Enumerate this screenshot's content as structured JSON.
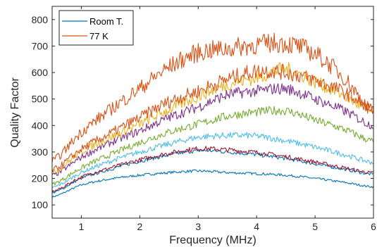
{
  "chart_data": {
    "type": "line",
    "xlabel": "Frequency (MHz)",
    "ylabel": "Quality Factor",
    "xlim": [
      0.5,
      6
    ],
    "ylim": [
      50,
      850
    ],
    "xticks": [
      1,
      2,
      3,
      4,
      5,
      6
    ],
    "yticks": [
      100,
      200,
      300,
      400,
      500,
      600,
      700,
      800
    ],
    "grid": false,
    "legend_position": "top-left",
    "legend": [
      {
        "label": "Room T.",
        "color": "#0072BD"
      },
      {
        "label": "77 K",
        "color": "#D95319"
      }
    ],
    "x": [
      0.5,
      1.0,
      1.5,
      2.0,
      2.5,
      3.0,
      3.5,
      4.0,
      4.5,
      5.0,
      5.5,
      6.0
    ],
    "series": [
      {
        "color": "#0072BD",
        "values": [
          130,
          175,
          198,
          212,
          222,
          228,
          222,
          218,
          212,
          200,
          185,
          168
        ]
      },
      {
        "color": "#0072BD",
        "values": [
          145,
          200,
          235,
          265,
          288,
          305,
          300,
          290,
          275,
          255,
          235,
          215
        ]
      },
      {
        "color": "#A2142F",
        "values": [
          150,
          205,
          240,
          270,
          295,
          312,
          308,
          298,
          282,
          262,
          240,
          220
        ]
      },
      {
        "color": "#4DBEEE",
        "values": [
          165,
          222,
          265,
          300,
          330,
          355,
          362,
          360,
          342,
          318,
          290,
          260
        ]
      },
      {
        "color": "#77AC30",
        "values": [
          178,
          240,
          290,
          335,
          375,
          405,
          435,
          450,
          455,
          420,
          385,
          340
        ]
      },
      {
        "color": "#7E2F8E",
        "values": [
          210,
          280,
          335,
          380,
          430,
          470,
          515,
          530,
          538,
          500,
          455,
          400
        ]
      },
      {
        "color": "#EDB120",
        "values": [
          222,
          300,
          355,
          405,
          460,
          510,
          555,
          580,
          612,
          565,
          512,
          450
        ]
      },
      {
        "color": "#D95319",
        "values": [
          230,
          310,
          370,
          430,
          490,
          530,
          575,
          605,
          600,
          570,
          525,
          460
        ]
      },
      {
        "color": "#D95319",
        "values": [
          265,
          375,
          460,
          540,
          620,
          675,
          690,
          705,
          710,
          670,
          580,
          450
        ]
      }
    ]
  }
}
